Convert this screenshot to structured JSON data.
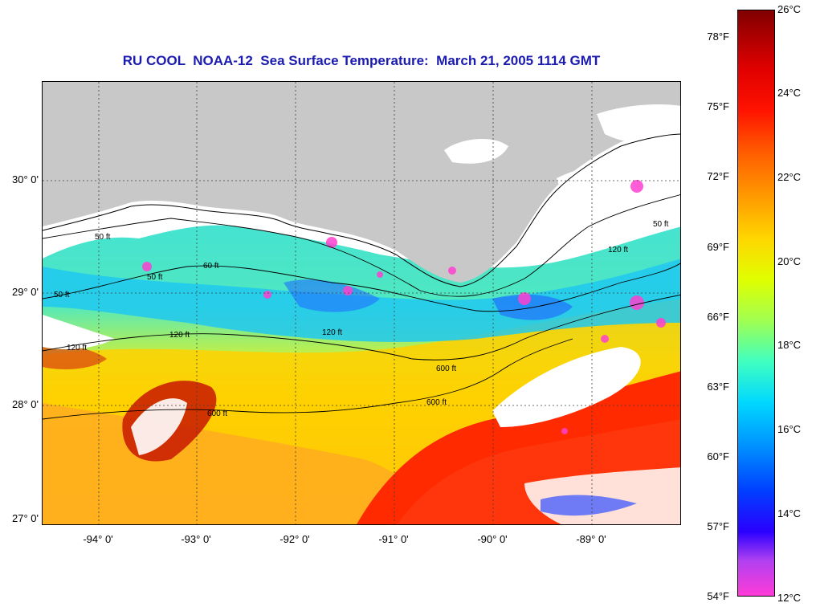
{
  "title": "RU COOL  NOAA-12  Sea Surface Temperature:  March 21, 2005 1114 GMT",
  "map": {
    "lat_labels": [
      "30° 0'",
      "29° 0'",
      "28° 0'",
      "27° 0'"
    ],
    "lon_labels": [
      "-94° 0'",
      "-93° 0'",
      "-92° 0'",
      "-91° 0'",
      "-90° 0'",
      "-89° 0'"
    ],
    "contour_labels": [
      "50 ft",
      "50 ft",
      "50 ft",
      "60 ft",
      "120 ft",
      "120 ft",
      "120 ft",
      "600 ft",
      "600 ft",
      "600 ft",
      "50 ft",
      "120 ft"
    ],
    "colors": {
      "land": "#c8c8c8",
      "cloud": "#ffffff",
      "warm": "#ff2a00",
      "mid": "#ffd000",
      "cool": "#20e0f0"
    }
  },
  "colorbar": {
    "fahrenheit_ticks": [
      "78°F",
      "75°F",
      "72°F",
      "69°F",
      "66°F",
      "63°F",
      "60°F",
      "57°F",
      "54°F"
    ],
    "celsius_ticks": [
      "26°C",
      "24°C",
      "22°C",
      "20°C",
      "18°C",
      "16°C",
      "14°C",
      "12°C"
    ]
  }
}
